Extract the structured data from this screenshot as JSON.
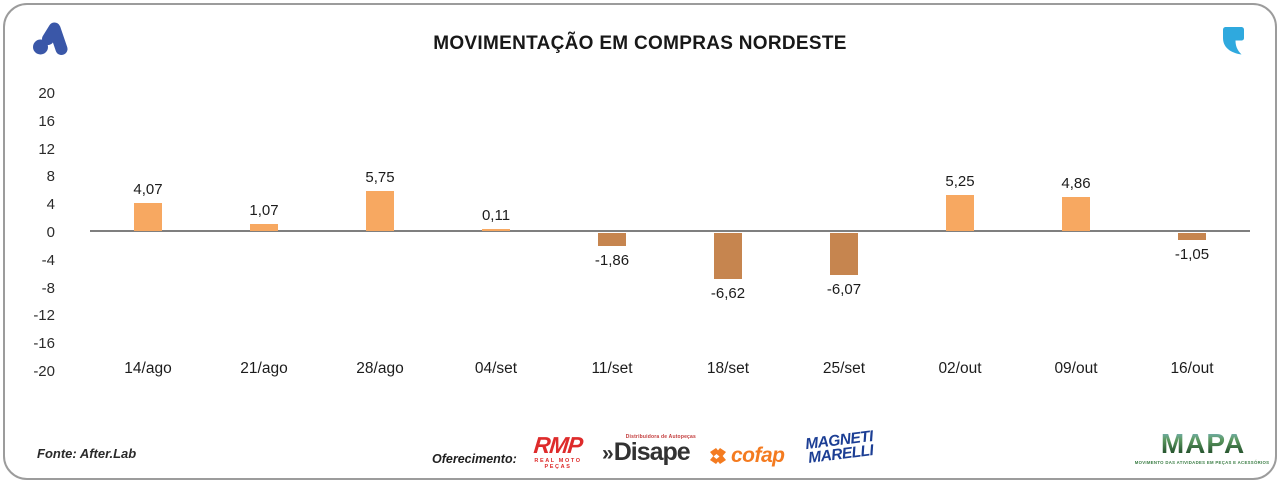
{
  "header": {
    "title": "MOVIMENTAÇÃO EM COMPRAS NORDESTE",
    "logo_color": "#3A57A8",
    "quote_icon_color": "#2FA9DE"
  },
  "chart_data": {
    "type": "bar",
    "title": "MOVIMENTAÇÃO EM COMPRAS NORDESTE",
    "categories": [
      "14/ago",
      "21/ago",
      "28/ago",
      "04/set",
      "11/set",
      "18/set",
      "25/set",
      "02/out",
      "09/out",
      "16/out"
    ],
    "values": [
      4.07,
      1.07,
      5.75,
      0.11,
      -1.86,
      -6.62,
      -6.07,
      5.25,
      4.86,
      -1.05
    ],
    "value_labels": [
      "4,07",
      "1,07",
      "5,75",
      "0,11",
      "-1,86",
      "-6,62",
      "-6,07",
      "5,25",
      "4,86",
      "-1,05"
    ],
    "xlabel": "",
    "ylabel": "",
    "y_ticks": [
      20,
      16,
      12,
      8,
      4,
      0,
      -4,
      -8,
      -12,
      -16,
      -20
    ],
    "ylim": [
      -20,
      20
    ],
    "grid": false,
    "legend": false,
    "colors": {
      "positive": "#F7A861",
      "negative": "#C6854F",
      "zero_line": "#7F7F7F"
    }
  },
  "footer": {
    "source": "Fonte: After.Lab",
    "offering_label": "Oferecimento:",
    "sponsors": {
      "rmp": {
        "name": "RMP",
        "tagline": "REAL MOTO PEÇAS"
      },
      "disape": {
        "chevrons": "»",
        "name": "Disape",
        "tagline": "Distribuidora de Autopeças"
      },
      "cofap": {
        "name": "cofap"
      },
      "magneti_marelli": {
        "line1": "MAGNETI",
        "line2": "MARELLI"
      }
    },
    "mapa": {
      "name": "MAPA",
      "tagline": "MOVIMENTO DAS ATIVIDADES EM PEÇAS E ACESSÓRIOS"
    }
  }
}
